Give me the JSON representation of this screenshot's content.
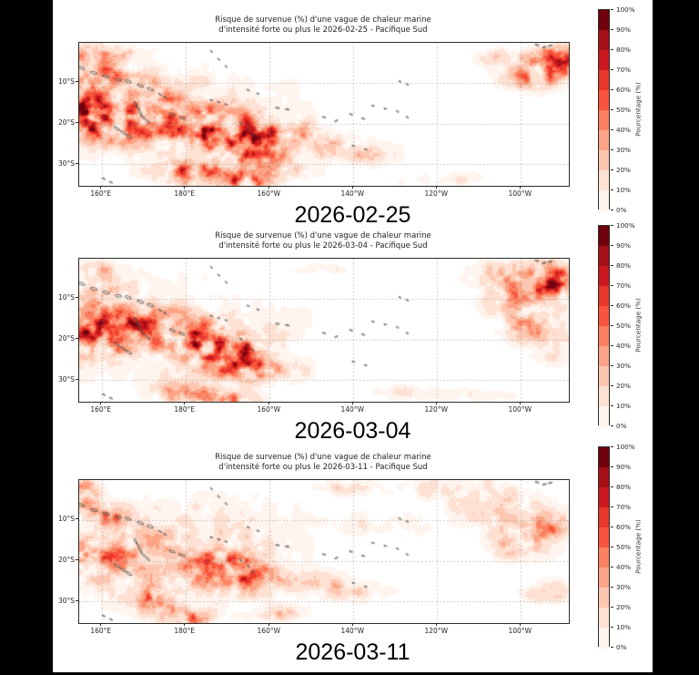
{
  "page": {
    "background": "#000000",
    "figure_background": "#ffffff"
  },
  "colorbar": {
    "label": "Pourcentage (%)",
    "ticks_top_to_bottom": [
      "100%",
      "90%",
      "80%",
      "70%",
      "60%",
      "50%",
      "40%",
      "30%",
      "20%",
      "10%",
      "0%"
    ],
    "colors_low_to_high": [
      "#fff4ee",
      "#fee1d3",
      "#fdc6b0",
      "#fca486",
      "#fc8161",
      "#f8553c",
      "#ea362a",
      "#cb181d",
      "#a50f15",
      "#70010d"
    ],
    "empty_color": "#ffffff",
    "outline_color": "#2b2b2b"
  },
  "chart_data": [
    {
      "type": "heatmap",
      "title_line1": "Risque de survenue (%) d'une vague de chaleur marine",
      "title_line2": "d'intensité forte ou plus le 2026-02-25 - Pacifique Sud",
      "date_label": "2026-02-25",
      "x_ticks": [
        "160°E",
        "180°E",
        "160°W",
        "140°W",
        "120°W",
        "100°W"
      ],
      "y_ticks": [
        "10°S",
        "20°S",
        "30°S"
      ],
      "value_units": "percent",
      "value_range": [
        0,
        100
      ],
      "lon_range_est": [
        "155°E",
        "88°W"
      ],
      "lat_range_est": [
        "0°S",
        "35°S"
      ],
      "grid": true,
      "seed": 11,
      "hotspots": [
        [
          0.03,
          0.07,
          0.05,
          0.07,
          0.55
        ],
        [
          0.1,
          0.08,
          0.04,
          0.05,
          0.35
        ],
        [
          0.05,
          0.22,
          0.06,
          0.08,
          0.5
        ],
        [
          0.015,
          0.48,
          0.05,
          0.16,
          0.8
        ],
        [
          0.08,
          0.55,
          0.09,
          0.14,
          0.6
        ],
        [
          0.16,
          0.45,
          0.08,
          0.1,
          0.35
        ],
        [
          0.27,
          0.6,
          0.11,
          0.14,
          0.85
        ],
        [
          0.35,
          0.72,
          0.09,
          0.13,
          0.75
        ],
        [
          0.44,
          0.62,
          0.07,
          0.09,
          0.4
        ],
        [
          0.23,
          0.9,
          0.07,
          0.09,
          0.75
        ],
        [
          0.34,
          0.95,
          0.05,
          0.07,
          0.8
        ],
        [
          0.42,
          0.88,
          0.05,
          0.06,
          0.5
        ],
        [
          0.52,
          0.72,
          0.07,
          0.08,
          0.28
        ],
        [
          0.6,
          0.78,
          0.07,
          0.07,
          0.22
        ],
        [
          0.97,
          0.12,
          0.05,
          0.11,
          0.85
        ],
        [
          0.92,
          0.22,
          0.06,
          0.1,
          0.55
        ],
        [
          0.87,
          0.1,
          0.05,
          0.06,
          0.35
        ],
        [
          0.2,
          0.5,
          0.25,
          0.35,
          0.16
        ],
        [
          0.1,
          0.3,
          0.12,
          0.15,
          0.25
        ],
        [
          0.75,
          0.95,
          0.1,
          0.06,
          0.15
        ]
      ]
    },
    {
      "type": "heatmap",
      "title_line1": "Risque de survenue (%) d'une vague de chaleur marine",
      "title_line2": "d'intensité forte ou plus le 2026-03-04 - Pacifique Sud",
      "date_label": "2026-03-04",
      "x_ticks": [
        "160°E",
        "180°E",
        "160°W",
        "140°W",
        "120°W",
        "100°W"
      ],
      "y_ticks": [
        "10°S",
        "20°S",
        "30°S"
      ],
      "value_units": "percent",
      "value_range": [
        0,
        100
      ],
      "lon_range_est": [
        "155°E",
        "88°W"
      ],
      "lat_range_est": [
        "0°S",
        "35°S"
      ],
      "grid": true,
      "seed": 23,
      "hotspots": [
        [
          0.02,
          0.5,
          0.05,
          0.18,
          0.65
        ],
        [
          0.09,
          0.52,
          0.09,
          0.14,
          0.5
        ],
        [
          0.26,
          0.56,
          0.1,
          0.12,
          0.8
        ],
        [
          0.31,
          0.7,
          0.08,
          0.12,
          0.7
        ],
        [
          0.38,
          0.78,
          0.07,
          0.08,
          0.4
        ],
        [
          0.22,
          0.93,
          0.06,
          0.07,
          0.65
        ],
        [
          0.31,
          0.97,
          0.05,
          0.05,
          0.6
        ],
        [
          0.05,
          0.22,
          0.07,
          0.1,
          0.35
        ],
        [
          0.03,
          0.07,
          0.05,
          0.06,
          0.35
        ],
        [
          0.14,
          0.4,
          0.1,
          0.12,
          0.3
        ],
        [
          0.96,
          0.15,
          0.05,
          0.13,
          0.85
        ],
        [
          0.9,
          0.28,
          0.07,
          0.14,
          0.6
        ],
        [
          0.86,
          0.1,
          0.06,
          0.08,
          0.45
        ],
        [
          0.93,
          0.5,
          0.06,
          0.1,
          0.4
        ],
        [
          0.97,
          0.65,
          0.04,
          0.08,
          0.3
        ],
        [
          0.2,
          0.5,
          0.25,
          0.35,
          0.15
        ],
        [
          0.5,
          0.06,
          0.05,
          0.04,
          0.18
        ],
        [
          0.8,
          0.95,
          0.08,
          0.05,
          0.18
        ],
        [
          0.66,
          0.93,
          0.05,
          0.05,
          0.25
        ]
      ]
    },
    {
      "type": "heatmap",
      "title_line1": "Risque de survenue (%) d'une vague de chaleur marine",
      "title_line2": "d'intensité forte ou plus le 2026-03-11 - Pacifique Sud",
      "date_label": "2026-03-11",
      "x_ticks": [
        "160°E",
        "180°E",
        "160°W",
        "140°W",
        "120°W",
        "100°W"
      ],
      "y_ticks": [
        "10°S",
        "20°S",
        "30°S"
      ],
      "value_units": "percent",
      "value_range": [
        0,
        100
      ],
      "lon_range_est": [
        "155°E",
        "88°W"
      ],
      "lat_range_est": [
        "0°S",
        "35°S"
      ],
      "grid": true,
      "seed": 37,
      "hotspots": [
        [
          0.01,
          0.08,
          0.025,
          0.09,
          0.9
        ],
        [
          0.05,
          0.24,
          0.05,
          0.08,
          0.5
        ],
        [
          0.02,
          0.55,
          0.05,
          0.14,
          0.5
        ],
        [
          0.1,
          0.5,
          0.1,
          0.15,
          0.35
        ],
        [
          0.28,
          0.58,
          0.09,
          0.11,
          0.65
        ],
        [
          0.33,
          0.7,
          0.07,
          0.1,
          0.6
        ],
        [
          0.155,
          0.82,
          0.04,
          0.12,
          0.65
        ],
        [
          0.22,
          0.95,
          0.05,
          0.06,
          0.6
        ],
        [
          0.4,
          0.92,
          0.05,
          0.05,
          0.45
        ],
        [
          0.46,
          0.7,
          0.08,
          0.08,
          0.3
        ],
        [
          0.55,
          0.78,
          0.08,
          0.07,
          0.25
        ],
        [
          0.9,
          0.42,
          0.06,
          0.12,
          0.5
        ],
        [
          0.97,
          0.3,
          0.04,
          0.1,
          0.55
        ],
        [
          0.85,
          0.18,
          0.09,
          0.13,
          0.3
        ],
        [
          0.75,
          0.06,
          0.12,
          0.07,
          0.22
        ],
        [
          0.55,
          0.05,
          0.07,
          0.05,
          0.18
        ],
        [
          0.95,
          0.78,
          0.05,
          0.08,
          0.3
        ],
        [
          0.25,
          0.35,
          0.2,
          0.25,
          0.18
        ],
        [
          0.15,
          0.65,
          0.2,
          0.25,
          0.2
        ],
        [
          0.62,
          0.3,
          0.1,
          0.1,
          0.12
        ]
      ]
    }
  ],
  "islands": {
    "stroke": "#4a4a4a",
    "chains": [
      {
        "name": "solomon-islands",
        "size": 2.4,
        "pts": [
          [
            0.005,
            0.175
          ],
          [
            0.03,
            0.21
          ],
          [
            0.055,
            0.235
          ],
          [
            0.08,
            0.26
          ],
          [
            0.1,
            0.27
          ],
          [
            0.125,
            0.3
          ],
          [
            0.145,
            0.325
          ]
        ]
      },
      {
        "name": "santa-cruz",
        "size": 1.2,
        "pts": [
          [
            0.165,
            0.36
          ],
          [
            0.175,
            0.38
          ]
        ]
      },
      {
        "name": "vanuatu",
        "size": 1.8,
        "pts": [
          [
            0.115,
            0.425
          ],
          [
            0.12,
            0.455
          ],
          [
            0.125,
            0.49
          ],
          [
            0.13,
            0.52
          ],
          [
            0.14,
            0.55
          ]
        ]
      },
      {
        "name": "new-caledonia",
        "size": 2.2,
        "pts": [
          [
            0.077,
            0.6
          ],
          [
            0.09,
            0.628
          ],
          [
            0.102,
            0.655
          ]
        ]
      },
      {
        "name": "fiji",
        "size": 2.1,
        "pts": [
          [
            0.19,
            0.5
          ],
          [
            0.21,
            0.525
          ]
        ]
      },
      {
        "name": "tuvalu",
        "size": 1.0,
        "pts": [
          [
            0.27,
            0.4
          ],
          [
            0.285,
            0.415
          ],
          [
            0.3,
            0.43
          ]
        ]
      },
      {
        "name": "kiribati",
        "size": 1.0,
        "pts": [
          [
            0.27,
            0.06
          ],
          [
            0.285,
            0.115
          ],
          [
            0.3,
            0.165
          ]
        ]
      },
      {
        "name": "phoenix-islands",
        "size": 1.0,
        "pts": [
          [
            0.345,
            0.33
          ],
          [
            0.365,
            0.355
          ]
        ]
      },
      {
        "name": "samoa",
        "size": 1.4,
        "pts": [
          [
            0.405,
            0.455
          ],
          [
            0.425,
            0.465
          ]
        ]
      },
      {
        "name": "tonga",
        "size": 1.1,
        "pts": [
          [
            0.33,
            0.56
          ],
          [
            0.345,
            0.6
          ],
          [
            0.355,
            0.64
          ]
        ]
      },
      {
        "name": "cook-society",
        "size": 1.2,
        "pts": [
          [
            0.5,
            0.52
          ],
          [
            0.525,
            0.545
          ],
          [
            0.555,
            0.5
          ],
          [
            0.58,
            0.53
          ]
        ]
      },
      {
        "name": "tuamotu",
        "size": 1.0,
        "pts": [
          [
            0.6,
            0.44
          ],
          [
            0.625,
            0.46
          ],
          [
            0.65,
            0.48
          ],
          [
            0.67,
            0.52
          ]
        ]
      },
      {
        "name": "marquesas",
        "size": 1.0,
        "pts": [
          [
            0.655,
            0.27
          ],
          [
            0.67,
            0.29
          ]
        ]
      },
      {
        "name": "austral",
        "size": 1.0,
        "pts": [
          [
            0.56,
            0.72
          ],
          [
            0.585,
            0.745
          ]
        ]
      },
      {
        "name": "galapagos",
        "size": 1.4,
        "pts": [
          [
            0.935,
            0.015
          ],
          [
            0.95,
            0.03
          ],
          [
            0.962,
            0.02
          ]
        ]
      },
      {
        "name": "norfolk-area",
        "size": 1.2,
        "pts": [
          [
            0.05,
            0.95
          ],
          [
            0.065,
            0.975
          ]
        ]
      }
    ]
  }
}
